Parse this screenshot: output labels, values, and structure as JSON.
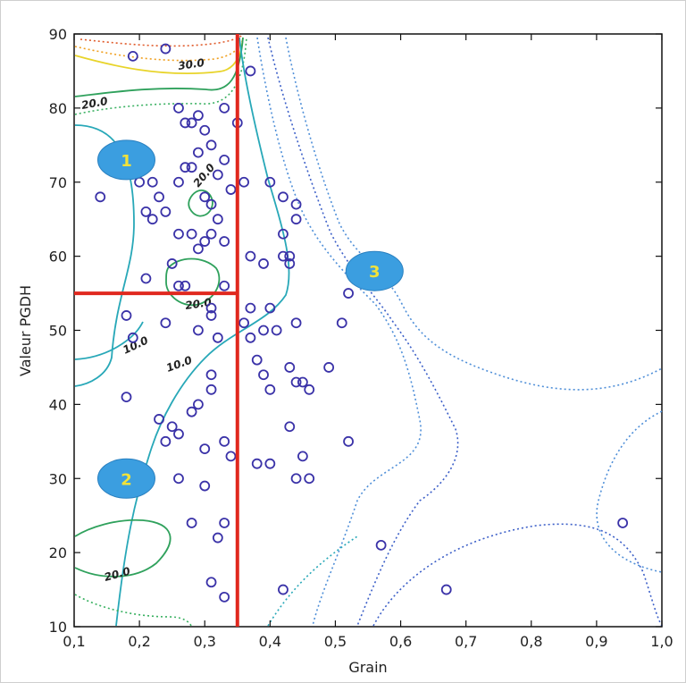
{
  "chart_data": {
    "type": "scatter",
    "xlabel": "Grain",
    "ylabel": "Valeur PGDH",
    "xlim": [
      0.1,
      1.0
    ],
    "ylim": [
      10,
      90
    ],
    "x_ticks": [
      "0,1",
      "0,2",
      "0,3",
      "0,4",
      "0,5",
      "0,6",
      "0,7",
      "0,8",
      "0,9",
      "1,0"
    ],
    "y_ticks": [
      "10",
      "20",
      "30",
      "40",
      "50",
      "60",
      "70",
      "80",
      "90"
    ],
    "grid": false,
    "points": [
      [
        0.19,
        87
      ],
      [
        0.24,
        88
      ],
      [
        0.37,
        85
      ],
      [
        0.33,
        80
      ],
      [
        0.35,
        78
      ],
      [
        0.26,
        80
      ],
      [
        0.27,
        78
      ],
      [
        0.28,
        78
      ],
      [
        0.29,
        79
      ],
      [
        0.3,
        77
      ],
      [
        0.31,
        75
      ],
      [
        0.33,
        73
      ],
      [
        0.27,
        72
      ],
      [
        0.28,
        72
      ],
      [
        0.29,
        74
      ],
      [
        0.32,
        71
      ],
      [
        0.26,
        70
      ],
      [
        0.2,
        70
      ],
      [
        0.22,
        70
      ],
      [
        0.34,
        69
      ],
      [
        0.36,
        70
      ],
      [
        0.4,
        70
      ],
      [
        0.3,
        68
      ],
      [
        0.31,
        67
      ],
      [
        0.32,
        65
      ],
      [
        0.14,
        68
      ],
      [
        0.23,
        68
      ],
      [
        0.21,
        66
      ],
      [
        0.22,
        65
      ],
      [
        0.24,
        66
      ],
      [
        0.33,
        62
      ],
      [
        0.26,
        63
      ],
      [
        0.28,
        63
      ],
      [
        0.3,
        62
      ],
      [
        0.31,
        63
      ],
      [
        0.29,
        61
      ],
      [
        0.42,
        68
      ],
      [
        0.44,
        67
      ],
      [
        0.44,
        65
      ],
      [
        0.42,
        63
      ],
      [
        0.42,
        60
      ],
      [
        0.43,
        60
      ],
      [
        0.43,
        59
      ],
      [
        0.37,
        60
      ],
      [
        0.39,
        59
      ],
      [
        0.25,
        59
      ],
      [
        0.21,
        57
      ],
      [
        0.26,
        56
      ],
      [
        0.27,
        56
      ],
      [
        0.33,
        56
      ],
      [
        0.31,
        53
      ],
      [
        0.37,
        53
      ],
      [
        0.4,
        53
      ],
      [
        0.36,
        51
      ],
      [
        0.37,
        49
      ],
      [
        0.39,
        50
      ],
      [
        0.41,
        50
      ],
      [
        0.44,
        51
      ],
      [
        0.52,
        55
      ],
      [
        0.51,
        51
      ],
      [
        0.18,
        52
      ],
      [
        0.19,
        49
      ],
      [
        0.24,
        51
      ],
      [
        0.29,
        50
      ],
      [
        0.31,
        52
      ],
      [
        0.32,
        49
      ],
      [
        0.38,
        46
      ],
      [
        0.39,
        44
      ],
      [
        0.43,
        45
      ],
      [
        0.49,
        45
      ],
      [
        0.44,
        43
      ],
      [
        0.45,
        43
      ],
      [
        0.46,
        42
      ],
      [
        0.4,
        42
      ],
      [
        0.31,
        44
      ],
      [
        0.31,
        42
      ],
      [
        0.29,
        40
      ],
      [
        0.28,
        39
      ],
      [
        0.18,
        41
      ],
      [
        0.23,
        38
      ],
      [
        0.25,
        37
      ],
      [
        0.26,
        36
      ],
      [
        0.24,
        35
      ],
      [
        0.3,
        34
      ],
      [
        0.33,
        35
      ],
      [
        0.34,
        33
      ],
      [
        0.38,
        32
      ],
      [
        0.4,
        32
      ],
      [
        0.45,
        33
      ],
      [
        0.44,
        30
      ],
      [
        0.46,
        30
      ],
      [
        0.52,
        35
      ],
      [
        0.3,
        29
      ],
      [
        0.26,
        30
      ],
      [
        0.28,
        24
      ],
      [
        0.32,
        22
      ],
      [
        0.33,
        24
      ],
      [
        0.31,
        16
      ],
      [
        0.33,
        14
      ],
      [
        0.42,
        15
      ],
      [
        0.57,
        21
      ],
      [
        0.67,
        15
      ],
      [
        0.94,
        24
      ],
      [
        0.43,
        37
      ]
    ],
    "contour_labels": [
      "30.0",
      "20.0",
      "20.0",
      "20.0",
      "10.0",
      "10.0",
      "20.0"
    ],
    "zones": [
      {
        "label": "1",
        "x": 0.18,
        "y": 73
      },
      {
        "label": "2",
        "x": 0.18,
        "y": 30
      },
      {
        "label": "3",
        "x": 0.56,
        "y": 58
      }
    ],
    "divider_lines": {
      "vertical_x": 0.35,
      "horizontal_y": 55,
      "horizontal_x_range": [
        0.1,
        0.35
      ]
    },
    "colors": {
      "points": "#3a32a8",
      "dividers": "#e0281e",
      "zone_fill": "#3b9ee0",
      "zone_text": "#f2e23a"
    }
  }
}
